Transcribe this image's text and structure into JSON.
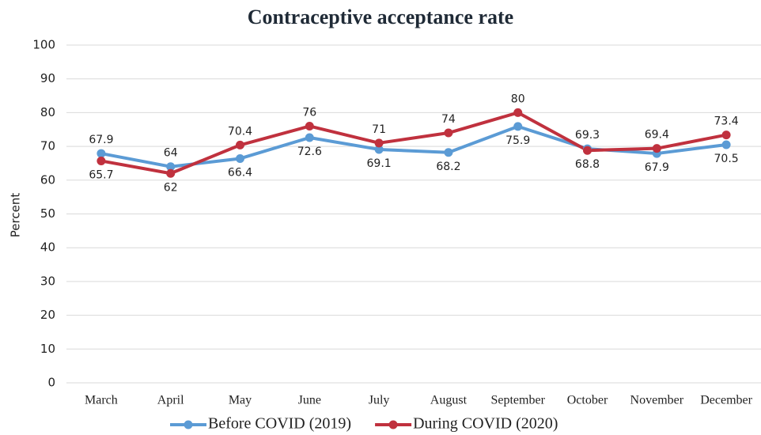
{
  "chart_data": {
    "type": "line",
    "title": "Contraceptive acceptance rate",
    "y_label": "Percent",
    "categories": [
      "March",
      "April",
      "May",
      "June",
      "July",
      "August",
      "September",
      "October",
      "November",
      "December"
    ],
    "series": [
      {
        "name": "Before COVID (2019)",
        "color": "#5b9bd5",
        "values": [
          67.9,
          64,
          66.4,
          72.6,
          69.1,
          68.2,
          75.9,
          69.3,
          67.9,
          70.5
        ]
      },
      {
        "name": "During COVID (2020)",
        "color": "#c0313e",
        "values": [
          65.7,
          62,
          70.4,
          76,
          71,
          74,
          80,
          68.8,
          69.4,
          73.4
        ]
      }
    ],
    "ylim": [
      0,
      100
    ],
    "yticks": [
      0,
      10,
      20,
      30,
      40,
      50,
      60,
      70,
      80,
      90,
      100
    ],
    "grid": true,
    "legend": "bottom"
  }
}
